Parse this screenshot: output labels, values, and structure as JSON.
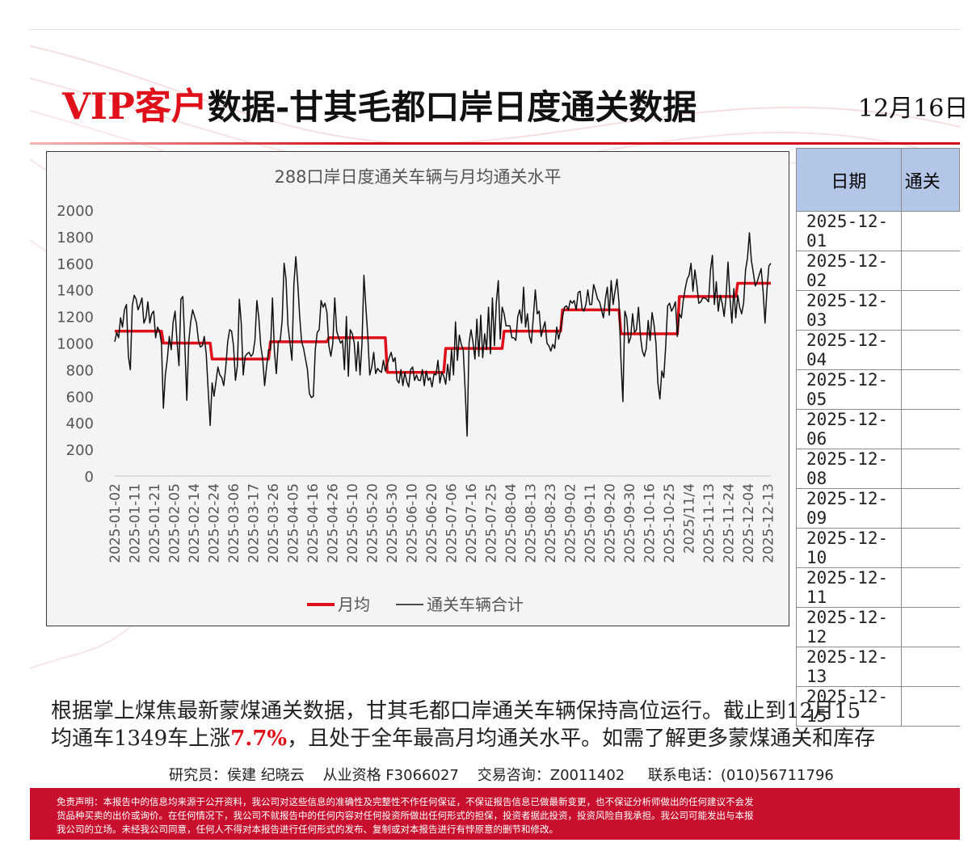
{
  "title": {
    "vip": "VIP客户",
    "main": "数据-甘其毛都口岸日度通关数据",
    "date": "12月16日"
  },
  "chart_data": {
    "type": "line",
    "title": "288口岸日度通关车辆与月均通关水平",
    "ylim": [
      0,
      2000
    ],
    "yticks": [
      0,
      200,
      400,
      600,
      800,
      1000,
      1200,
      1400,
      1600,
      1800,
      2000
    ],
    "xtick_labels": [
      "2025-01-02",
      "2025-01-11",
      "2025-01-21",
      "2025-02-05",
      "2025-02-14",
      "2025-02-24",
      "2025-03-06",
      "2025-03-17",
      "2025-03-26",
      "2025-04-05",
      "2025-04-16",
      "2025-04-26",
      "2025-05-10",
      "2025-05-20",
      "2025-05-30",
      "2025-06-10",
      "2025-06-20",
      "2025-07-06",
      "2025-07-16",
      "2025-07-25",
      "2025-08-04",
      "2025-08-13",
      "2025-08-23",
      "2025-09-02",
      "2025-09-11",
      "2025-09-20",
      "2025-09-30",
      "2025-10-16",
      "2025-10-25",
      "2025/11/4",
      "2025-11-13",
      "2025-11-24",
      "2025-12-04",
      "2025-12-13"
    ],
    "legend": {
      "position": "bottom",
      "entries": [
        "月均",
        "通关车辆合计"
      ]
    },
    "grid": false,
    "series": [
      {
        "name": "月均",
        "color": "#e0101a",
        "values": [
          1090,
          1090,
          1090,
          1090,
          1090,
          1090,
          1090,
          1090,
          1090,
          1090,
          1090,
          1090,
          1090,
          1090,
          1090,
          1090,
          1090,
          1090,
          1090,
          1090,
          1090,
          1090,
          1090,
          1090,
          1090,
          1000,
          1000,
          1000,
          1000,
          1000,
          1000,
          1000,
          1000,
          1000,
          1000,
          1000,
          1000,
          1000,
          1000,
          1000,
          1000,
          1000,
          1000,
          1000,
          1000,
          1000,
          1000,
          1000,
          1000,
          1000,
          880,
          880,
          880,
          880,
          880,
          880,
          880,
          880,
          880,
          880,
          880,
          880,
          880,
          880,
          880,
          880,
          880,
          880,
          880,
          880,
          880,
          880,
          880,
          880,
          880,
          880,
          880,
          880,
          880,
          880,
          1010,
          1010,
          1010,
          1010,
          1010,
          1010,
          1010,
          1010,
          1010,
          1010,
          1010,
          1010,
          1010,
          1010,
          1010,
          1010,
          1010,
          1010,
          1010,
          1010,
          1010,
          1010,
          1010,
          1010,
          1010,
          1010,
          1010,
          1010,
          1010,
          1010,
          1040,
          1040,
          1040,
          1040,
          1040,
          1040,
          1040,
          1040,
          1040,
          1040,
          1040,
          1040,
          1040,
          1040,
          1040,
          1040,
          1040,
          1040,
          1040,
          1040,
          1040,
          1040,
          1040,
          1040,
          1040,
          1040,
          1040,
          1040,
          1040,
          1040,
          780,
          780,
          780,
          780,
          780,
          780,
          780,
          780,
          780,
          780,
          780,
          780,
          780,
          780,
          780,
          780,
          780,
          780,
          780,
          780,
          780,
          780,
          780,
          780,
          780,
          780,
          780,
          780,
          780,
          780,
          960,
          960,
          960,
          960,
          960,
          960,
          960,
          960,
          960,
          960,
          960,
          960,
          960,
          960,
          960,
          960,
          960,
          960,
          960,
          960,
          960,
          960,
          960,
          960,
          960,
          960,
          960,
          960,
          960,
          960,
          1090,
          1090,
          1090,
          1090,
          1090,
          1090,
          1090,
          1090,
          1090,
          1090,
          1090,
          1090,
          1090,
          1090,
          1090,
          1090,
          1090,
          1090,
          1090,
          1090,
          1090,
          1090,
          1090,
          1090,
          1090,
          1090,
          1090,
          1090,
          1090,
          1090,
          1250,
          1250,
          1250,
          1250,
          1250,
          1250,
          1250,
          1250,
          1250,
          1250,
          1250,
          1250,
          1250,
          1250,
          1250,
          1250,
          1250,
          1250,
          1250,
          1250,
          1250,
          1250,
          1250,
          1250,
          1250,
          1250,
          1250,
          1250,
          1250,
          1250,
          1070,
          1070,
          1070,
          1070,
          1070,
          1070,
          1070,
          1070,
          1070,
          1070,
          1070,
          1070,
          1070,
          1070,
          1070,
          1070,
          1070,
          1070,
          1070,
          1070,
          1070,
          1070,
          1070,
          1070,
          1070,
          1070,
          1070,
          1070,
          1070,
          1070,
          1350,
          1350,
          1350,
          1350,
          1350,
          1350,
          1350,
          1350,
          1350,
          1350,
          1350,
          1350,
          1350,
          1350,
          1350,
          1350,
          1350,
          1350,
          1350,
          1350,
          1350,
          1350,
          1350,
          1350,
          1350,
          1350,
          1350,
          1350,
          1350,
          1350,
          1450,
          1450,
          1450,
          1450,
          1450,
          1450,
          1450,
          1450,
          1450,
          1450,
          1450,
          1450,
          1450,
          1450,
          1450,
          1450,
          1450,
          1450
        ]
      },
      {
        "name": "通关车辆合计",
        "color": "#111111",
        "values": [
          1010,
          1080,
          1040,
          1190,
          1120,
          1250,
          1290,
          900,
          800,
          1280,
          1360,
          1330,
          1250,
          1290,
          1340,
          1150,
          1190,
          1310,
          1150,
          1220,
          1240,
          1040,
          1120,
          1090,
          1000,
          510,
          760,
          880,
          1050,
          950,
          1160,
          1240,
          1010,
          830,
          1330,
          1350,
          1000,
          570,
          1010,
          1160,
          1250,
          1200,
          1150,
          1020,
          970,
          980,
          1050,
          920,
          640,
          380,
          700,
          600,
          710,
          820,
          760,
          740,
          680,
          810,
          1010,
          1100,
          1090,
          980,
          720,
          830,
          1330,
          1150,
          760,
          900,
          920,
          930,
          900,
          920,
          1020,
          1320,
          1190,
          980,
          880,
          680,
          820,
          950,
          950,
          1340,
          940,
          770,
          1010,
          1020,
          1170,
          1600,
          1480,
          1130,
          1000,
          870,
          1440,
          1650,
          1450,
          1200,
          1010,
          960,
          880,
          800,
          620,
          590,
          600,
          950,
          1080,
          1100,
          1320,
          1270,
          1300,
          1230,
          980,
          900,
          1000,
          1340,
          1090,
          1040,
          1000,
          1020,
          800,
          1200,
          750,
          1100,
          1070,
          1000,
          790,
          1010,
          760,
          1000,
          1510,
          1270,
          1050,
          760,
          820,
          930,
          770,
          810,
          790,
          780,
          870,
          790,
          840,
          890,
          930,
          860,
          890,
          720,
          700,
          800,
          680,
          780,
          710,
          670,
          800,
          820,
          720,
          760,
          720,
          720,
          800,
          680,
          790,
          720,
          740,
          670,
          770,
          760,
          870,
          700,
          780,
          750,
          690,
          840,
          720,
          950,
          760,
          1160,
          870,
          1060,
          990,
          950,
          640,
          300,
          1000,
          1100,
          1010,
          880,
          1180,
          900,
          1210,
          890,
          1070,
          950,
          1270,
          920,
          1340,
          980,
          1310,
          1470,
          1030,
          1270,
          1220,
          1130,
          1130,
          1130,
          1040,
          1040,
          1020,
          1200,
          1250,
          1150,
          1420,
          1120,
          1220,
          1050,
          1000,
          1190,
          1400,
          1220,
          1240,
          1050,
          1110,
          1160,
          1000,
          980,
          940,
          990,
          960,
          1120,
          1030,
          1100,
          1200,
          1270,
          1280,
          1250,
          1320,
          1300,
          1320,
          1250,
          1380,
          1390,
          1260,
          1240,
          1290,
          1400,
          1290,
          1290,
          1440,
          1390,
          1330,
          1310,
          1250,
          1190,
          1330,
          1420,
          1210,
          1470,
          1290,
          1390,
          1480,
          1300,
          870,
          560,
          1240,
          1190,
          1000,
          1040,
          1220,
          1080,
          1100,
          1270,
          1050,
          940,
          900,
          960,
          1170,
          1020,
          1230,
          1140,
          1000,
          700,
          580,
          790,
          740,
          980,
          1280,
          1300,
          1240,
          1270,
          1310,
          1050,
          1220,
          1190,
          1320,
          1410,
          1480,
          1510,
          1600,
          1390,
          1550,
          1440,
          1300,
          1310,
          1340,
          1340,
          1330,
          1310,
          1550,
          1660,
          1290,
          1460,
          1240,
          1360,
          1300,
          1200,
          1350,
          1610,
          1340,
          1150,
          1410,
          1190,
          1360,
          1270,
          1220,
          1300,
          1550,
          1640,
          1830,
          1620,
          1530,
          1430,
          1460,
          1510,
          1560,
          1390,
          1150,
          1400,
          1580,
          1600
        ]
      }
    ]
  },
  "table": {
    "headers": [
      "日期",
      "通关"
    ],
    "rows": [
      {
        "date": "2025-12-01"
      },
      {
        "date": "2025-12-02"
      },
      {
        "date": "2025-12-03"
      },
      {
        "date": "2025-12-04"
      },
      {
        "date": "2025-12-05"
      },
      {
        "date": "2025-12-06"
      },
      {
        "date": "2025-12-08"
      },
      {
        "date": "2025-12-09"
      },
      {
        "date": "2025-12-10"
      },
      {
        "date": "2025-12-11"
      },
      {
        "date": "2025-12-12"
      },
      {
        "date": "2025-12-13"
      },
      {
        "date": "2025-12-15"
      }
    ]
  },
  "paragraph": {
    "line1": "根据掌上煤焦最新蒙煤通关数据，甘其毛都口岸通关车辆保持高位运行。截止到12月15",
    "line2_a": "均通车1349车上涨",
    "line2_hl": "7.7%",
    "line2_b": "，且处于全年最高月均通关水平。如需了解更多蒙煤通关和库存"
  },
  "credits": "研究员：侯建 纪晓云    从业资格 F3066027    交易咨询：Z0011402     联系电话：(010)56711796",
  "disclaimer": {
    "line1": "免责声明：本报告中的信息均来源于公开资料，我公司对这些信息的准确性及完整性不作任何保证，不保证报告信息已做最新变更，也不保证分析师做出的任何建议不会发",
    "line2": "货品种买卖的出价或询价。在任何情况下，我公司不就报告中的任何内容对任何投资所做出任何形式的担保，投资者据此投资，投资风险自我承担。我公司可能发出与本报",
    "line3": "我公司的立场。未经我公司同意，任何人不得对本报告进行任何形式的发布、复制或对本报告进行有悖原意的删节和修改。"
  },
  "colors": {
    "accent_red": "#e0101a",
    "footer_red": "#c8102e",
    "header_blue": "#b4c6e7"
  }
}
